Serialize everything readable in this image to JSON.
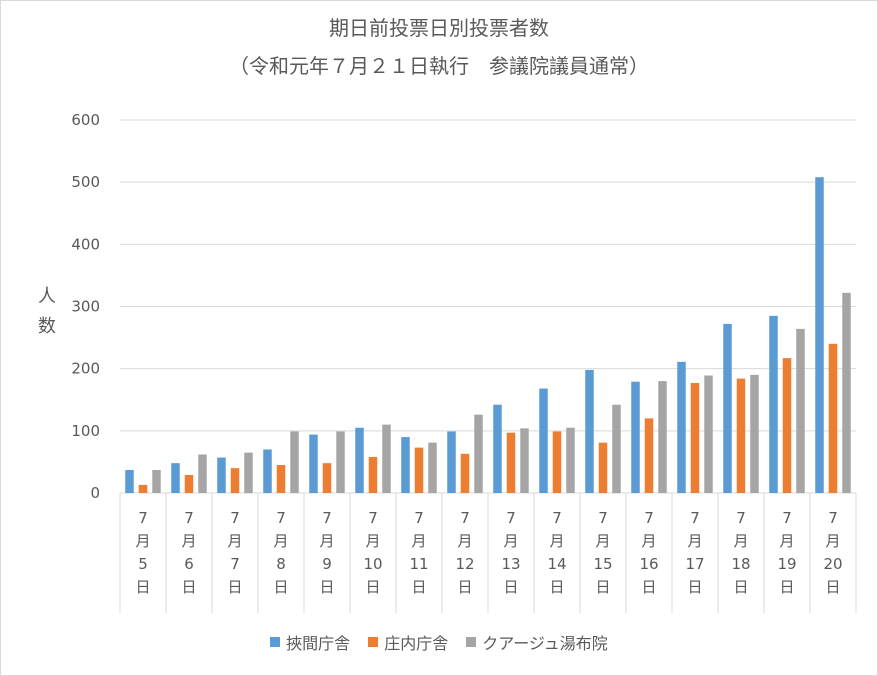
{
  "chart_data": {
    "type": "bar",
    "title": "期日前投票日別投票者数",
    "subtitle": "（令和元年７月２１日執行　参議院議員通常）",
    "ylabel": "人数",
    "xlabel": "",
    "ylim": [
      0,
      600
    ],
    "yticks": [
      0,
      100,
      200,
      300,
      400,
      500,
      600
    ],
    "grid": true,
    "legend_position": "bottom",
    "categories": [
      "7月5日",
      "7月6日",
      "7月7日",
      "7月8日",
      "7月9日",
      "7月10日",
      "7月11日",
      "7月12日",
      "7月13日",
      "7月14日",
      "7月15日",
      "7月16日",
      "7月17日",
      "7月18日",
      "7月19日",
      "7月20日"
    ],
    "category_parts": [
      [
        "7",
        "月",
        "5",
        "日"
      ],
      [
        "7",
        "月",
        "6",
        "日"
      ],
      [
        "7",
        "月",
        "7",
        "日"
      ],
      [
        "7",
        "月",
        "8",
        "日"
      ],
      [
        "7",
        "月",
        "9",
        "日"
      ],
      [
        "7",
        "月",
        "10",
        "日"
      ],
      [
        "7",
        "月",
        "11",
        "日"
      ],
      [
        "7",
        "月",
        "12",
        "日"
      ],
      [
        "7",
        "月",
        "13",
        "日"
      ],
      [
        "7",
        "月",
        "14",
        "日"
      ],
      [
        "7",
        "月",
        "15",
        "日"
      ],
      [
        "7",
        "月",
        "16",
        "日"
      ],
      [
        "7",
        "月",
        "17",
        "日"
      ],
      [
        "7",
        "月",
        "18",
        "日"
      ],
      [
        "7",
        "月",
        "19",
        "日"
      ],
      [
        "7",
        "月",
        "20",
        "日"
      ]
    ],
    "series": [
      {
        "name": "挾間庁舎",
        "color": "#5b9bd5",
        "values": [
          37,
          48,
          57,
          70,
          94,
          105,
          90,
          99,
          142,
          168,
          198,
          179,
          211,
          272,
          285,
          508
        ]
      },
      {
        "name": "庄内庁舎",
        "color": "#ed7d31",
        "values": [
          13,
          29,
          40,
          45,
          48,
          58,
          73,
          63,
          97,
          99,
          81,
          120,
          177,
          184,
          217,
          240
        ]
      },
      {
        "name": "クアージュ湯布院",
        "color": "#a5a5a5",
        "values": [
          37,
          62,
          65,
          99,
          99,
          110,
          81,
          126,
          104,
          105,
          142,
          180,
          189,
          190,
          264,
          322
        ]
      }
    ]
  }
}
